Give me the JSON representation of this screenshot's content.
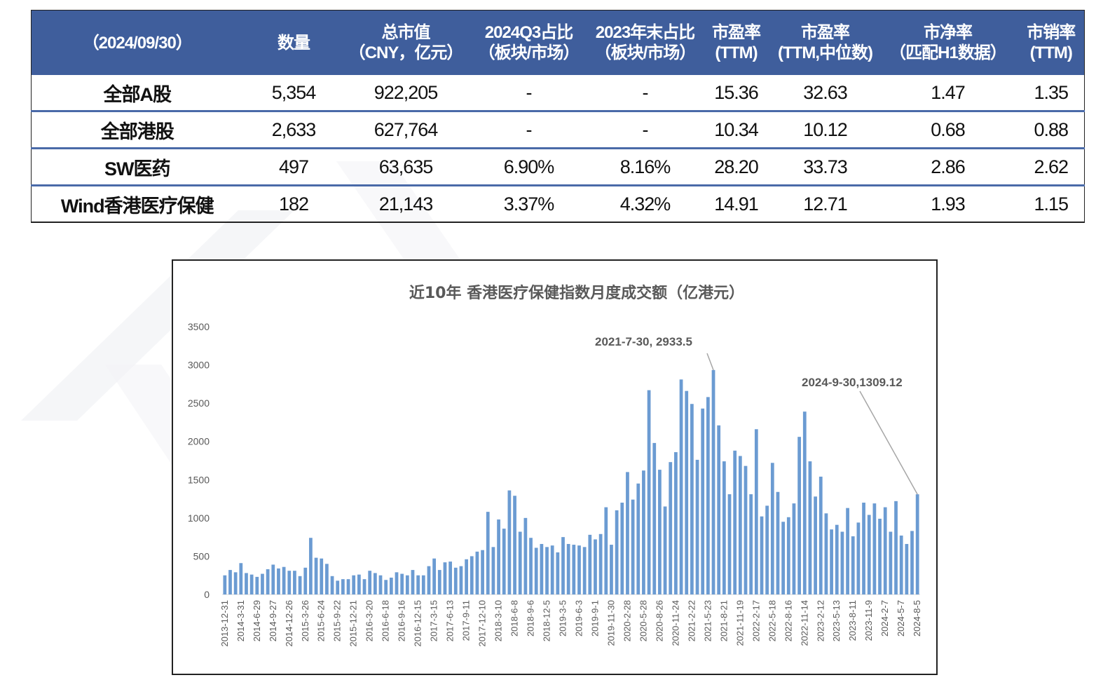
{
  "table": {
    "headers": [
      [
        "（2024/09/30）"
      ],
      [
        "数量"
      ],
      [
        "总市值",
        "（CNY，亿元）"
      ],
      [
        "2024Q3占比",
        "（板块/市场）"
      ],
      [
        "2023年末占比",
        "（板块/市场）"
      ],
      [
        "市盈率",
        "(TTM)"
      ],
      [
        "市盈率",
        "(TTM,中位数)"
      ],
      [
        "市净率",
        "（匹配H1数据）"
      ],
      [
        "市销率",
        "(TTM)"
      ]
    ],
    "rows": [
      [
        "全部A股",
        "5,354",
        "922,205",
        "-",
        "-",
        "15.36",
        "32.63",
        "1.47",
        "1.35"
      ],
      [
        "全部港股",
        "2,633",
        "627,764",
        "-",
        "-",
        "10.34",
        "10.12",
        "0.68",
        "0.88"
      ],
      [
        "SW医药",
        "497",
        "63,635",
        "6.90%",
        "8.16%",
        "28.20",
        "33.73",
        "2.86",
        "2.62"
      ],
      [
        "Wind香港医疗保健",
        "182",
        "21,143",
        "3.37%",
        "4.32%",
        "14.91",
        "12.71",
        "1.93",
        "1.15"
      ]
    ]
  },
  "chart_data": {
    "type": "bar",
    "title": "近10年 香港医疗保健指数月度成交额（亿港元）",
    "xlabel": "",
    "ylabel": "",
    "ylim": [
      0,
      3500
    ],
    "yticks": [
      0,
      500,
      1000,
      1500,
      2000,
      2500,
      3000,
      3500
    ],
    "grid": false,
    "bar_color": "#6b9bd2",
    "x_tick_labels": [
      "2013-12-31",
      "2014-3-31",
      "2014-6-29",
      "2014-9-27",
      "2014-12-26",
      "2015-3-26",
      "2015-6-24",
      "2015-9-22",
      "2015-12-21",
      "2016-3-20",
      "2016-6-18",
      "2016-9-16",
      "2016-12-15",
      "2017-3-15",
      "2017-6-13",
      "2017-9-11",
      "2017-12-10",
      "2018-3-10",
      "2018-6-8",
      "2018-9-6",
      "2018-12-5",
      "2019-3-5",
      "2019-6-3",
      "2019-9-1",
      "2019-11-30",
      "2020-2-28",
      "2020-5-28",
      "2020-8-26",
      "2020-11-24",
      "2021-2-22",
      "2021-5-23",
      "2021-8-21",
      "2021-11-19",
      "2022-2-17",
      "2022-5-18",
      "2022-8-16",
      "2022-11-14",
      "2023-2-12",
      "2023-5-13",
      "2023-8-11",
      "2023-11-9",
      "2024-2-7",
      "2024-5-7",
      "2024-8-5"
    ],
    "values": [
      250,
      320,
      290,
      410,
      280,
      260,
      230,
      270,
      330,
      390,
      340,
      360,
      310,
      310,
      240,
      350,
      740,
      480,
      470,
      400,
      240,
      180,
      200,
      200,
      250,
      260,
      200,
      310,
      280,
      250,
      190,
      220,
      290,
      270,
      250,
      320,
      250,
      250,
      370,
      470,
      320,
      420,
      430,
      350,
      370,
      460,
      500,
      560,
      580,
      1080,
      620,
      980,
      860,
      1360,
      1290,
      820,
      1000,
      740,
      610,
      660,
      620,
      640,
      550,
      750,
      660,
      650,
      640,
      620,
      780,
      720,
      790,
      1140,
      650,
      1100,
      1200,
      1600,
      1240,
      1450,
      1620,
      2670,
      1980,
      1630,
      1150,
      1730,
      1860,
      2810,
      2660,
      2490,
      1760,
      2430,
      2580,
      2933.5,
      2210,
      1740,
      1310,
      1880,
      1810,
      1680,
      1310,
      2160,
      1020,
      1160,
      1720,
      1340,
      950,
      1010,
      1190,
      2060,
      2390,
      1740,
      1280,
      1540,
      1060,
      850,
      910,
      820,
      1130,
      760,
      940,
      1200,
      1040,
      1190,
      990,
      1140,
      820,
      1220,
      770,
      660,
      830,
      1309.12
    ],
    "annotations": [
      {
        "text": "2021-7-30, 2933.5",
        "index": 91
      },
      {
        "text": "2024-9-30,1309.12",
        "index": 129
      }
    ]
  }
}
